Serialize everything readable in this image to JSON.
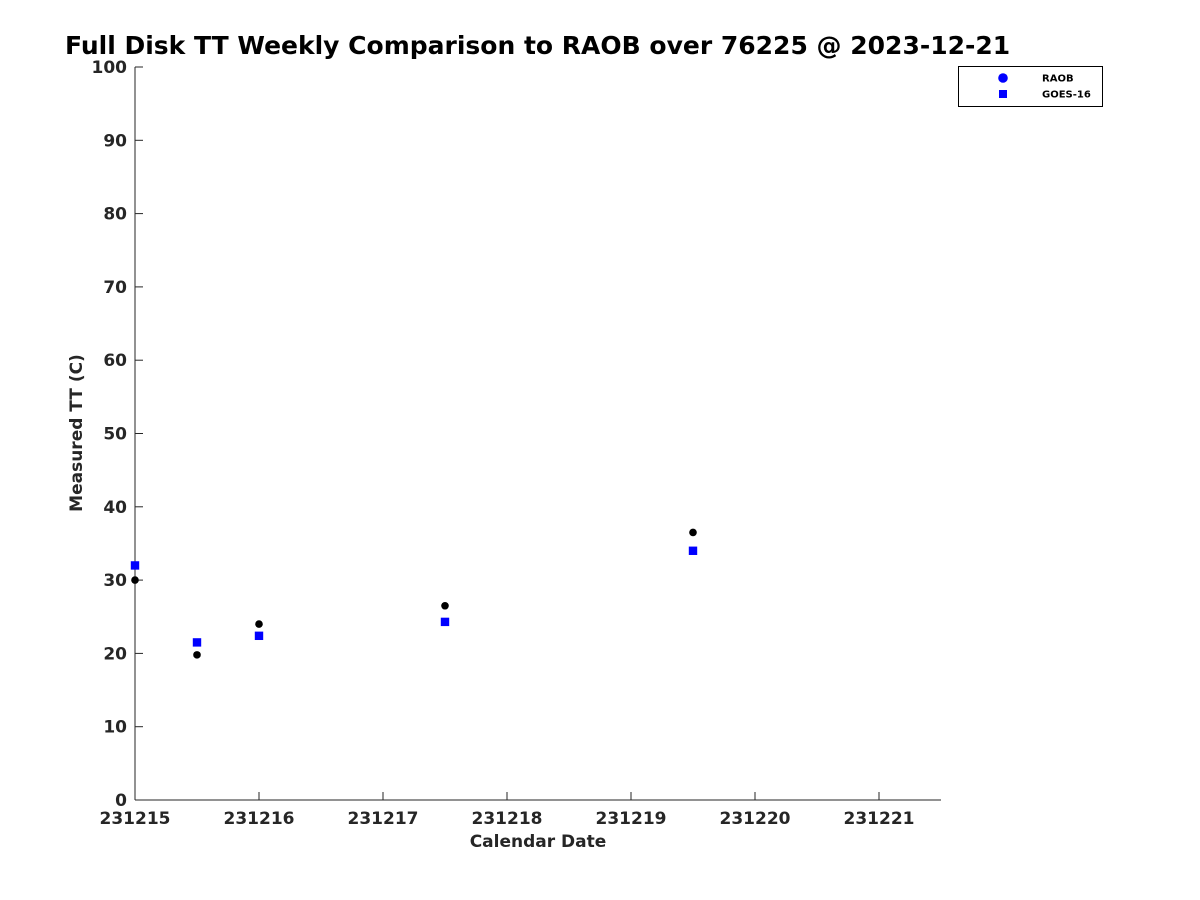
{
  "chart_data": {
    "type": "scatter",
    "title": "Full Disk TT Weekly Comparison to RAOB over 76225 @ 2023-12-21",
    "xlabel": "Calendar Date",
    "ylabel": "Measured TT (C)",
    "xlim": [
      0,
      6.5
    ],
    "ylim": [
      0,
      100
    ],
    "x_ticks": [
      {
        "value": 0,
        "label": "231215"
      },
      {
        "value": 1,
        "label": "231216"
      },
      {
        "value": 2,
        "label": "231217"
      },
      {
        "value": 3,
        "label": "231218"
      },
      {
        "value": 4,
        "label": "231219"
      },
      {
        "value": 5,
        "label": "231220"
      },
      {
        "value": 6,
        "label": "231221"
      }
    ],
    "y_ticks": [
      {
        "value": 0,
        "label": "0"
      },
      {
        "value": 10,
        "label": "10"
      },
      {
        "value": 20,
        "label": "20"
      },
      {
        "value": 30,
        "label": "30"
      },
      {
        "value": 40,
        "label": "40"
      },
      {
        "value": 50,
        "label": "50"
      },
      {
        "value": 60,
        "label": "60"
      },
      {
        "value": 70,
        "label": "70"
      },
      {
        "value": 80,
        "label": "80"
      },
      {
        "value": 90,
        "label": "90"
      },
      {
        "value": 100,
        "label": "100"
      }
    ],
    "series": [
      {
        "name": "RAOB",
        "marker": "circle",
        "color": "#000000",
        "legend_color": "#0000ff",
        "x": [
          0,
          0.5,
          1.0,
          2.5,
          4.5
        ],
        "y": [
          30.0,
          19.8,
          24.0,
          26.5,
          36.5
        ]
      },
      {
        "name": "GOES-16",
        "marker": "square",
        "color": "#0000ff",
        "legend_color": "#0000ff",
        "x": [
          0,
          0.5,
          1.0,
          2.5,
          4.5
        ],
        "y": [
          32.0,
          21.5,
          22.4,
          24.3,
          34.0
        ]
      }
    ],
    "grid": false,
    "legend_position": "top-right"
  }
}
